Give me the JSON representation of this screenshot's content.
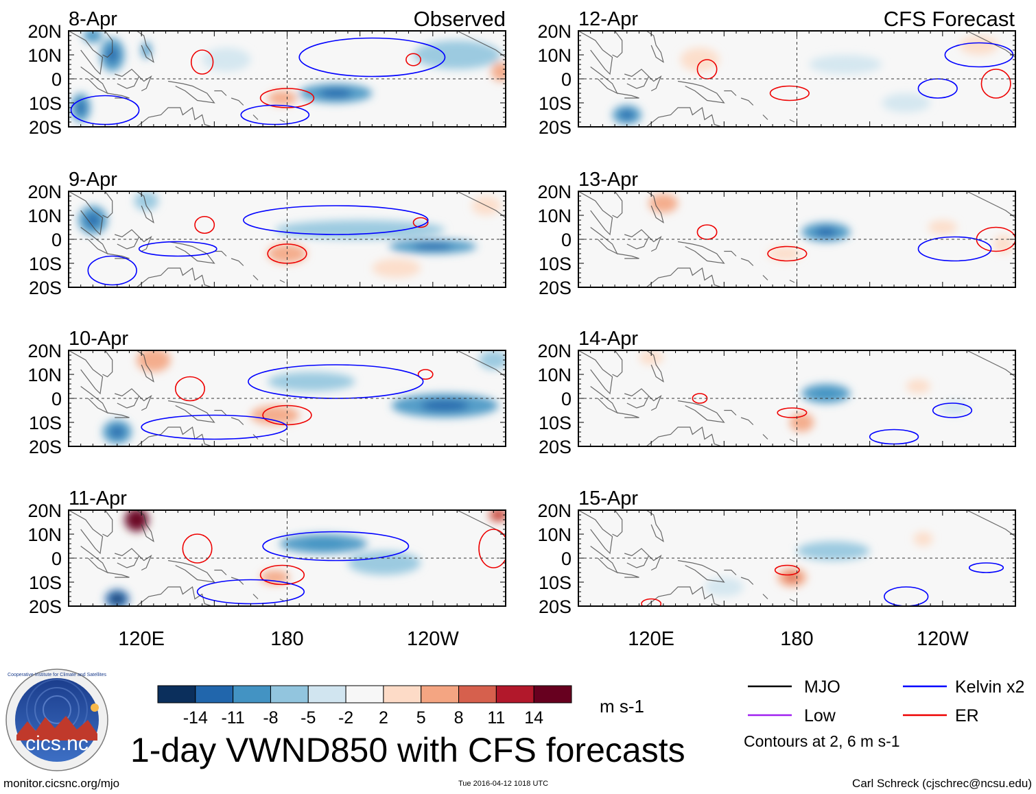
{
  "chart_data": {
    "type": "heatmap",
    "title": "1-day VWND850 with CFS forecasts",
    "variable": "VWND850 anomaly",
    "units": "m s-1",
    "headers": {
      "observed": "Observed",
      "forecast": "CFS Forecast"
    },
    "lat_ticks": [
      "20N",
      "10N",
      "0",
      "10S",
      "20S"
    ],
    "lat_values": [
      20,
      10,
      0,
      -10,
      -20
    ],
    "lon_ticks": [
      "120E",
      "180",
      "120W"
    ],
    "lon_values": [
      120,
      180,
      240
    ],
    "lon_range": [
      90,
      270
    ],
    "lat_range": [
      -20,
      20
    ],
    "colorbar": {
      "ticks": [
        "-14",
        "-11",
        "-8",
        "-5",
        "-2",
        "2",
        "5",
        "8",
        "11",
        "14"
      ],
      "colors": [
        "#0b2f5c",
        "#2166ac",
        "#4393c3",
        "#92c5de",
        "#d1e5f0",
        "#f7f7f7",
        "#fddbc7",
        "#f4a582",
        "#d6604d",
        "#b2182b",
        "#67001f"
      ]
    },
    "panels": [
      {
        "date": "8-Apr",
        "source": "Observed",
        "fill": [
          [
            122,
            12,
            2,
            3.5,
            -8
          ],
          [
            200,
            -6,
            15,
            4,
            -9
          ],
          [
            178,
            -8,
            6,
            3,
            7
          ],
          [
            108,
            10,
            5,
            7,
            -9
          ],
          [
            95,
            -12,
            4,
            6,
            -9
          ],
          [
            250,
            10,
            18,
            6,
            -5
          ],
          [
            155,
            8,
            10,
            5,
            -4
          ],
          [
            268,
            3,
            4,
            4,
            6
          ],
          [
            100,
            18,
            4,
            3,
            -8
          ]
        ],
        "contours": [
          {
            "model": "ER",
            "lon": 145,
            "lat": 7,
            "rx": 4.5,
            "ry": 5
          },
          {
            "model": "ER",
            "lon": 180,
            "lat": -8,
            "rx": 11,
            "ry": 4
          },
          {
            "model": "ER",
            "lon": 232,
            "lat": 8,
            "rx": 3,
            "ry": 2.5
          },
          {
            "model": "Kelvin x2",
            "lon": 215,
            "lat": 9,
            "rx": 30,
            "ry": 8
          },
          {
            "model": "Kelvin x2",
            "lon": 105,
            "lat": -13,
            "rx": 14,
            "ry": 6
          },
          {
            "model": "Kelvin x2",
            "lon": 175,
            "lat": -15,
            "rx": 14,
            "ry": 4
          }
        ]
      },
      {
        "date": "9-Apr",
        "source": "Observed",
        "fill": [
          [
            210,
            4,
            35,
            4,
            -5
          ],
          [
            240,
            -3,
            18,
            3,
            -9
          ],
          [
            180,
            -6,
            8,
            4,
            7
          ],
          [
            122,
            16,
            5,
            4,
            -6
          ],
          [
            100,
            8,
            6,
            6,
            -10
          ],
          [
            262,
            14,
            6,
            4,
            5
          ],
          [
            225,
            -12,
            10,
            4,
            4
          ]
        ],
        "contours": [
          {
            "model": "ER",
            "lon": 146,
            "lat": 6,
            "rx": 4,
            "ry": 3.5
          },
          {
            "model": "ER",
            "lon": 180,
            "lat": -6,
            "rx": 8,
            "ry": 4
          },
          {
            "model": "ER",
            "lon": 235,
            "lat": 7,
            "rx": 3,
            "ry": 2
          },
          {
            "model": "Kelvin x2",
            "lon": 200,
            "lat": 8,
            "rx": 38,
            "ry": 6
          },
          {
            "model": "Kelvin x2",
            "lon": 135,
            "lat": -4,
            "rx": 16,
            "ry": 3
          },
          {
            "model": "Kelvin x2",
            "lon": 108,
            "lat": -13,
            "rx": 10,
            "ry": 6
          }
        ]
      },
      {
        "date": "10-Apr",
        "source": "Observed",
        "fill": [
          [
            245,
            -3,
            22,
            5,
            -9
          ],
          [
            190,
            7,
            18,
            4,
            -7
          ],
          [
            175,
            -7,
            10,
            4,
            6
          ],
          [
            125,
            16,
            7,
            5,
            7
          ],
          [
            110,
            -14,
            6,
            5,
            -9
          ],
          [
            265,
            16,
            6,
            4,
            -7
          ]
        ],
        "contours": [
          {
            "model": "ER",
            "lon": 140,
            "lat": 4,
            "rx": 6,
            "ry": 5
          },
          {
            "model": "ER",
            "lon": 180,
            "lat": -7,
            "rx": 10,
            "ry": 4
          },
          {
            "model": "ER",
            "lon": 237,
            "lat": 10,
            "rx": 3,
            "ry": 2
          },
          {
            "model": "Kelvin x2",
            "lon": 200,
            "lat": 7,
            "rx": 36,
            "ry": 7
          },
          {
            "model": "Kelvin x2",
            "lon": 150,
            "lat": -12,
            "rx": 30,
            "ry": 5
          }
        ]
      },
      {
        "date": "11-Apr",
        "source": "Observed",
        "fill": [
          [
            118,
            16,
            5,
            5,
            16
          ],
          [
            195,
            6,
            18,
            4,
            -8
          ],
          [
            220,
            -2,
            15,
            5,
            -6
          ],
          [
            175,
            -8,
            6,
            3,
            6
          ],
          [
            110,
            -17,
            5,
            4,
            -12
          ],
          [
            267,
            18,
            4,
            3,
            10
          ]
        ],
        "contours": [
          {
            "model": "ER",
            "lon": 143,
            "lat": 4,
            "rx": 6,
            "ry": 6
          },
          {
            "model": "ER",
            "lon": 178,
            "lat": -7,
            "rx": 9,
            "ry": 4
          },
          {
            "model": "ER",
            "lon": 265,
            "lat": 4,
            "rx": 6,
            "ry": 8
          },
          {
            "model": "Kelvin x2",
            "lon": 200,
            "lat": 5,
            "rx": 30,
            "ry": 6
          },
          {
            "model": "Kelvin x2",
            "lon": 165,
            "lat": -14,
            "rx": 22,
            "ry": 5
          }
        ]
      },
      {
        "date": "12-Apr",
        "source": "CFS Forecast",
        "fill": [
          [
            110,
            -15,
            6,
            4,
            -9
          ],
          [
            140,
            8,
            8,
            5,
            4
          ],
          [
            200,
            6,
            15,
            4,
            -4
          ],
          [
            255,
            14,
            8,
            4,
            4
          ],
          [
            225,
            -10,
            10,
            4,
            -3
          ]
        ],
        "contours": [
          {
            "model": "ER",
            "lon": 143,
            "lat": 4,
            "rx": 4,
            "ry": 4
          },
          {
            "model": "ER",
            "lon": 177,
            "lat": -6,
            "rx": 8,
            "ry": 3
          },
          {
            "model": "ER",
            "lon": 262,
            "lat": -2,
            "rx": 6,
            "ry": 6
          },
          {
            "model": "Kelvin x2",
            "lon": 255,
            "lat": 10,
            "rx": 14,
            "ry": 5
          },
          {
            "model": "Kelvin x2",
            "lon": 238,
            "lat": -4,
            "rx": 8,
            "ry": 4
          }
        ]
      },
      {
        "date": "13-Apr",
        "source": "CFS Forecast",
        "fill": [
          [
            192,
            3,
            10,
            4,
            -9
          ],
          [
            240,
            5,
            6,
            3,
            5
          ],
          [
            175,
            -6,
            7,
            3,
            5
          ],
          [
            125,
            15,
            6,
            4,
            6
          ],
          [
            265,
            -2,
            4,
            4,
            5
          ]
        ],
        "contours": [
          {
            "model": "ER",
            "lon": 143,
            "lat": 3,
            "rx": 4,
            "ry": 3
          },
          {
            "model": "ER",
            "lon": 176,
            "lat": -6,
            "rx": 8,
            "ry": 3
          },
          {
            "model": "ER",
            "lon": 262,
            "lat": 0,
            "rx": 8,
            "ry": 5
          },
          {
            "model": "Kelvin x2",
            "lon": 245,
            "lat": -4,
            "rx": 15,
            "ry": 5
          }
        ]
      },
      {
        "date": "14-Apr",
        "source": "CFS Forecast",
        "fill": [
          [
            192,
            2,
            10,
            4,
            -8
          ],
          [
            230,
            5,
            5,
            3,
            4
          ],
          [
            182,
            -10,
            5,
            4,
            7
          ],
          [
            120,
            17,
            5,
            3,
            5
          ],
          [
            245,
            -4,
            6,
            3,
            -3
          ]
        ],
        "contours": [
          {
            "model": "ER",
            "lon": 140,
            "lat": 0,
            "rx": 3,
            "ry": 2
          },
          {
            "model": "ER",
            "lon": 178,
            "lat": -6,
            "rx": 6,
            "ry": 2
          },
          {
            "model": "Kelvin x2",
            "lon": 244,
            "lat": -5,
            "rx": 8,
            "ry": 3
          },
          {
            "model": "Kelvin x2",
            "lon": 220,
            "lat": -16,
            "rx": 10,
            "ry": 3
          }
        ]
      },
      {
        "date": "15-Apr",
        "source": "CFS Forecast",
        "fill": [
          [
            195,
            3,
            15,
            4,
            -6
          ],
          [
            178,
            -8,
            6,
            4,
            8
          ],
          [
            232,
            8,
            4,
            3,
            5
          ],
          [
            150,
            -12,
            8,
            4,
            -3
          ]
        ],
        "contours": [
          {
            "model": "ER",
            "lon": 176,
            "lat": -5,
            "rx": 5,
            "ry": 2
          },
          {
            "model": "ER",
            "lon": 120,
            "lat": -19,
            "rx": 4,
            "ry": 2
          },
          {
            "model": "Kelvin x2",
            "lon": 258,
            "lat": -4,
            "rx": 7,
            "ry": 2
          },
          {
            "model": "Kelvin x2",
            "lon": 225,
            "lat": -16,
            "rx": 9,
            "ry": 4
          }
        ]
      }
    ],
    "legend": [
      {
        "label": "MJO",
        "color": "#000000"
      },
      {
        "label": "Kelvin x2",
        "color": "#0000ff"
      },
      {
        "label": "Low",
        "color": "#a020f0"
      },
      {
        "label": "ER",
        "color": "#ee0000"
      }
    ],
    "contour_note": "Contours at 2, 6 m s-1"
  },
  "logo": {
    "text": "cics.nc",
    "ring_text": "Cooperative Institute for Climate and Satellites"
  },
  "footer": {
    "url": "monitor.cicsnc.org/mjo",
    "timestamp": "Tue 2016-04-12 1018 UTC",
    "author": "Carl Schreck (cjschrec@ncsu.edu)"
  }
}
